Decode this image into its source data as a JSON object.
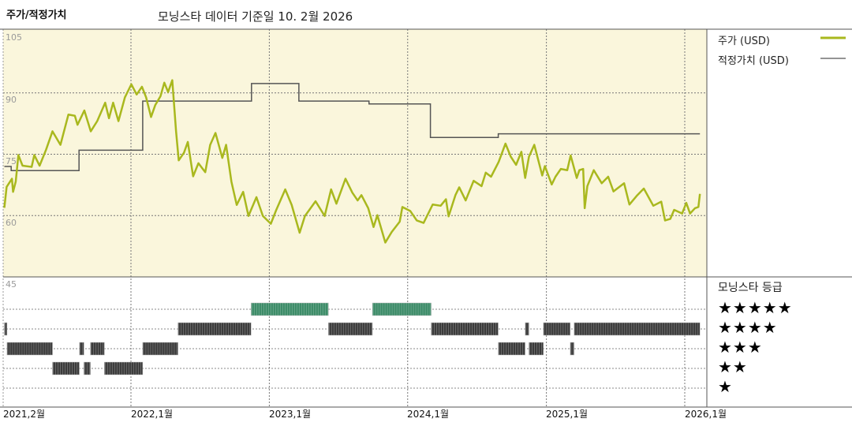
{
  "header": {
    "title": "주가/적정가치",
    "subtitle": "모닝스타 데이터 기준일 10. 2월 2026"
  },
  "legend": {
    "price_label": "주가 (USD)",
    "fair_value_label": "적정가치 (USD)",
    "rating_title": "모닝스타 등급",
    "star_rows": [
      "★★★★★",
      "★★★★",
      "★★★",
      "★★",
      "★"
    ]
  },
  "colors": {
    "price": "#a9b81e",
    "fair_value": "#555555",
    "plot_background": "#faf6dc",
    "rating_5": "#3a8a66",
    "rating_other": "#3a3a3a"
  },
  "chart_data": [
    {
      "type": "line",
      "y_tick_labels": [
        "105",
        "90",
        "75",
        "60",
        "45"
      ],
      "yticks": [
        105,
        90,
        75,
        60,
        45
      ],
      "ylim": [
        45,
        105
      ],
      "x_tick_labels": [
        "2021,2월",
        "2022,1월",
        "2023,1월",
        "2024,1월",
        "2025,1월",
        "2026,1월"
      ],
      "xticks": [
        "2021-02-01",
        "2022-01-01",
        "2023-01-01",
        "2024-01-01",
        "2025-01-01",
        "2026-01-01"
      ],
      "xlim": [
        "2021-02-01",
        "2026-02-10"
      ],
      "grid": true,
      "legend_position": "right",
      "series": [
        {
          "name": "주가 (USD)",
          "style": "line",
          "points": [
            [
              "2021-02-01",
              61.9
            ],
            [
              "2021-02-07",
              67.0
            ],
            [
              "2021-02-21",
              69.0
            ],
            [
              "2021-02-24",
              65.8
            ],
            [
              "2021-03-03",
              68.3
            ],
            [
              "2021-03-10",
              74.8
            ],
            [
              "2021-03-21",
              72.2
            ],
            [
              "2021-04-14",
              71.9
            ],
            [
              "2021-04-21",
              74.8
            ],
            [
              "2021-05-05",
              72.2
            ],
            [
              "2021-05-22",
              76.1
            ],
            [
              "2021-06-08",
              80.6
            ],
            [
              "2021-06-29",
              77.3
            ],
            [
              "2021-07-20",
              84.7
            ],
            [
              "2021-08-06",
              84.4
            ],
            [
              "2021-08-13",
              82.2
            ],
            [
              "2021-08-31",
              85.7
            ],
            [
              "2021-09-17",
              80.6
            ],
            [
              "2021-10-04",
              83.1
            ],
            [
              "2021-10-25",
              87.6
            ],
            [
              "2021-11-04",
              83.8
            ],
            [
              "2021-11-15",
              87.6
            ],
            [
              "2021-11-29",
              83.1
            ],
            [
              "2021-12-16",
              88.9
            ],
            [
              "2022-01-02",
              92.1
            ],
            [
              "2022-01-16",
              89.6
            ],
            [
              "2022-01-30",
              91.5
            ],
            [
              "2022-02-10",
              88.9
            ],
            [
              "2022-02-23",
              84.1
            ],
            [
              "2022-03-06",
              87.0
            ],
            [
              "2022-03-20",
              89.2
            ],
            [
              "2022-03-30",
              92.5
            ],
            [
              "2022-04-09",
              90.2
            ],
            [
              "2022-04-20",
              93.1
            ],
            [
              "2022-04-30",
              80.6
            ],
            [
              "2022-05-07",
              73.5
            ],
            [
              "2022-05-21",
              75.4
            ],
            [
              "2022-05-31",
              78.0
            ],
            [
              "2022-06-14",
              69.6
            ],
            [
              "2022-06-28",
              72.8
            ],
            [
              "2022-07-16",
              70.6
            ],
            [
              "2022-07-29",
              77.3
            ],
            [
              "2022-08-12",
              80.2
            ],
            [
              "2022-08-30",
              74.1
            ],
            [
              "2022-09-09",
              77.3
            ],
            [
              "2022-09-23",
              68.3
            ],
            [
              "2022-10-07",
              62.6
            ],
            [
              "2022-10-24",
              65.8
            ],
            [
              "2022-11-07",
              59.9
            ],
            [
              "2022-11-28",
              64.5
            ],
            [
              "2022-12-15",
              59.9
            ],
            [
              "2023-01-05",
              58.0
            ],
            [
              "2023-01-19",
              61.3
            ],
            [
              "2023-02-12",
              66.4
            ],
            [
              "2023-03-01",
              62.6
            ],
            [
              "2023-03-22",
              55.8
            ],
            [
              "2023-04-05",
              59.9
            ],
            [
              "2023-05-03",
              63.5
            ],
            [
              "2023-05-27",
              59.9
            ],
            [
              "2023-06-13",
              66.4
            ],
            [
              "2023-06-27",
              62.9
            ],
            [
              "2023-07-21",
              69.0
            ],
            [
              "2023-08-08",
              65.6
            ],
            [
              "2023-08-22",
              63.7
            ],
            [
              "2023-09-01",
              65.0
            ],
            [
              "2023-09-19",
              61.8
            ],
            [
              "2023-10-03",
              57.2
            ],
            [
              "2023-10-13",
              60.1
            ],
            [
              "2023-11-03",
              53.4
            ],
            [
              "2023-11-20",
              56.0
            ],
            [
              "2023-12-11",
              58.5
            ],
            [
              "2023-12-18",
              62.1
            ],
            [
              "2024-01-08",
              61.1
            ],
            [
              "2024-01-25",
              58.8
            ],
            [
              "2024-02-12",
              58.2
            ],
            [
              "2024-03-07",
              62.7
            ],
            [
              "2024-03-28",
              62.4
            ],
            [
              "2024-04-11",
              64.0
            ],
            [
              "2024-04-18",
              59.8
            ],
            [
              "2024-05-06",
              65.0
            ],
            [
              "2024-05-16",
              66.9
            ],
            [
              "2024-06-02",
              63.7
            ],
            [
              "2024-06-23",
              68.5
            ],
            [
              "2024-07-14",
              67.2
            ],
            [
              "2024-07-25",
              70.5
            ],
            [
              "2024-08-08",
              69.5
            ],
            [
              "2024-08-28",
              73.1
            ],
            [
              "2024-09-15",
              77.6
            ],
            [
              "2024-09-29",
              74.4
            ],
            [
              "2024-10-13",
              72.4
            ],
            [
              "2024-10-27",
              75.6
            ],
            [
              "2024-11-06",
              69.2
            ],
            [
              "2024-11-16",
              74.4
            ],
            [
              "2024-11-30",
              77.3
            ],
            [
              "2024-12-11",
              73.4
            ],
            [
              "2024-12-21",
              69.8
            ],
            [
              "2024-12-28",
              72.1
            ],
            [
              "2025-01-15",
              67.6
            ],
            [
              "2025-01-25",
              69.5
            ],
            [
              "2025-02-08",
              71.4
            ],
            [
              "2025-02-25",
              71.1
            ],
            [
              "2025-03-06",
              74.7
            ],
            [
              "2025-03-22",
              69.2
            ],
            [
              "2025-03-29",
              71.1
            ],
            [
              "2025-04-08",
              71.4
            ],
            [
              "2025-04-12",
              61.8
            ],
            [
              "2025-04-19",
              67.2
            ],
            [
              "2025-05-06",
              71.1
            ],
            [
              "2025-05-27",
              67.9
            ],
            [
              "2025-06-13",
              69.5
            ],
            [
              "2025-06-27",
              65.9
            ],
            [
              "2025-07-25",
              67.9
            ],
            [
              "2025-08-08",
              62.7
            ],
            [
              "2025-08-29",
              65.0
            ],
            [
              "2025-09-15",
              66.6
            ],
            [
              "2025-10-10",
              62.4
            ],
            [
              "2025-10-31",
              63.4
            ],
            [
              "2025-11-10",
              58.8
            ],
            [
              "2025-11-24",
              59.2
            ],
            [
              "2025-12-04",
              61.4
            ],
            [
              "2025-12-25",
              60.5
            ],
            [
              "2026-01-05",
              63.1
            ],
            [
              "2026-01-15",
              60.5
            ],
            [
              "2026-01-28",
              61.8
            ],
            [
              "2026-02-06",
              62.1
            ],
            [
              "2026-02-10",
              65.3
            ]
          ]
        },
        {
          "name": "적정가치 (USD)",
          "style": "step",
          "points": [
            [
              "2021-02-01",
              72
            ],
            [
              "2021-02-19",
              71
            ],
            [
              "2021-08-17",
              76
            ],
            [
              "2022-02-01",
              88
            ],
            [
              "2022-11-15",
              92.3
            ],
            [
              "2023-03-20",
              88
            ],
            [
              "2023-09-21",
              87.3
            ],
            [
              "2024-03-01",
              79.1
            ],
            [
              "2024-08-27",
              80
            ],
            [
              "2026-02-10",
              80
            ]
          ]
        }
      ]
    },
    {
      "type": "timeline",
      "title": "모닝스타 등급",
      "categories": [
        5,
        4,
        3,
        2,
        1
      ],
      "segments": [
        {
          "stars": 4,
          "start": "2021-02-01",
          "end": "2021-02-08"
        },
        {
          "stars": 3,
          "start": "2021-02-08",
          "end": "2021-06-08"
        },
        {
          "stars": 2,
          "start": "2021-06-08",
          "end": "2021-08-18"
        },
        {
          "stars": 3,
          "start": "2021-08-18",
          "end": "2021-08-30"
        },
        {
          "stars": 2,
          "start": "2021-08-30",
          "end": "2021-09-16"
        },
        {
          "stars": 3,
          "start": "2021-09-16",
          "end": "2021-10-23"
        },
        {
          "stars": 2,
          "start": "2021-10-23",
          "end": "2022-02-01"
        },
        {
          "stars": 3,
          "start": "2022-02-01",
          "end": "2022-05-05"
        },
        {
          "stars": 4,
          "start": "2022-05-05",
          "end": "2022-11-14"
        },
        {
          "stars": 5,
          "start": "2022-11-14",
          "end": "2023-06-06"
        },
        {
          "stars": 4,
          "start": "2023-06-06",
          "end": "2023-09-30"
        },
        {
          "stars": 5,
          "start": "2023-09-30",
          "end": "2024-03-03"
        },
        {
          "stars": 4,
          "start": "2024-03-03",
          "end": "2024-08-27"
        },
        {
          "stars": 3,
          "start": "2024-08-27",
          "end": "2024-11-06"
        },
        {
          "stars": 4,
          "start": "2024-11-06",
          "end": "2024-11-16"
        },
        {
          "stars": 3,
          "start": "2024-11-16",
          "end": "2024-12-24"
        },
        {
          "stars": 4,
          "start": "2024-12-24",
          "end": "2025-03-05"
        },
        {
          "stars": 3,
          "start": "2025-03-05",
          "end": "2025-03-15"
        },
        {
          "stars": 4,
          "start": "2025-03-15",
          "end": "2026-02-10"
        }
      ]
    }
  ]
}
